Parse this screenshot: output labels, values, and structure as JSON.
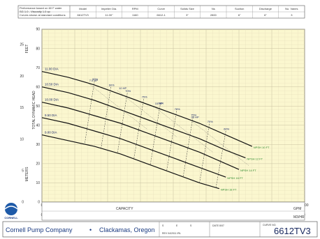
{
  "header": {
    "notes": [
      "Performance based on 60 F water",
      "SG 1.0 - Viscosity 1.0 cp",
      "Curves shown at standard conditions"
    ],
    "columns": [
      {
        "label": "Model",
        "value": "6612TV3"
      },
      {
        "label": "Impeller Dia.",
        "value": "11.00\""
      },
      {
        "label": "RPM",
        "value": "1160"
      },
      {
        "label": "Curve",
        "value": "6612-1"
      },
      {
        "label": "Solids Size",
        "value": "3\""
      },
      {
        "label": "Ns",
        "value": "2800"
      },
      {
        "label": "Suction",
        "value": "6\""
      },
      {
        "label": "Discharge",
        "value": "6\""
      },
      {
        "label": "No. Vanes",
        "value": "3"
      }
    ]
  },
  "chart_data": {
    "type": "line",
    "ylabel": "TOTAL DYNAMIC HEAD",
    "xlabel": "CAPACITY",
    "y_units_left": "METERS",
    "y_units_right": "FEET",
    "x_units_bottom": "GPM",
    "x_units_mid": "M3/HR",
    "x_units_top": "LITERS/SEC",
    "xlim": [
      0,
      4000
    ],
    "ylim": [
      0,
      90
    ],
    "x_ticks": [
      0,
      500,
      1000,
      1500,
      2000,
      2500,
      3000,
      3500,
      4000
    ],
    "y_ticks": [
      0,
      10,
      20,
      30,
      40,
      50,
      60,
      70,
      80,
      90
    ],
    "y_ticks_meters": [
      0,
      5,
      10,
      15,
      20,
      25
    ],
    "x_ticks_m3hr": [
      0,
      100,
      200,
      300,
      400,
      500,
      600,
      700,
      800,
      900
    ],
    "x_ticks_lps": [
      0,
      50,
      100,
      150,
      200,
      250
    ],
    "grid": true,
    "series": [
      {
        "name": "11.00 DIA",
        "x": [
          0,
          400,
          800,
          1200,
          1600,
          2000,
          2400,
          2800,
          3200
        ],
        "y": [
          68,
          65,
          61,
          56,
          51,
          46,
          41,
          35,
          29
        ]
      },
      {
        "name": "10.50 DIA",
        "x": [
          0,
          400,
          800,
          1200,
          1600,
          2000,
          2400,
          2800,
          3100
        ],
        "y": [
          60,
          57,
          53,
          48,
          43,
          38,
          33,
          27,
          23
        ]
      },
      {
        "name": "10.00 DIA",
        "x": [
          0,
          400,
          800,
          1200,
          1600,
          2000,
          2400,
          2800,
          3000
        ],
        "y": [
          52,
          49,
          45,
          41,
          36,
          31,
          26,
          20,
          17
        ]
      },
      {
        "name": "9.50 DIA",
        "x": [
          0,
          400,
          800,
          1200,
          1600,
          2000,
          2400,
          2800
        ],
        "y": [
          44,
          41,
          37,
          33,
          28,
          23,
          18,
          13
        ]
      },
      {
        "name": "9.00 DIA",
        "x": [
          0,
          400,
          800,
          1200,
          1600,
          2000,
          2400,
          2700
        ],
        "y": [
          35,
          32,
          29,
          25,
          20,
          15,
          10,
          7
        ]
      }
    ],
    "efficiency_labels": [
      "50%",
      "60%",
      "70%",
      "75%",
      "78%",
      "78%",
      "75%",
      "70%",
      "60%"
    ],
    "hp_labels": [
      "7.5 HP",
      "10 HP",
      "15 HP",
      "20 HP"
    ],
    "npsh_labels": [
      "NPSH 10 FT",
      "NPSH 12 FT",
      "NPSH 14 FT",
      "NPSH 16 FT",
      "NPSH 18 FT"
    ]
  },
  "footer": {
    "logo_text": "CORNELL",
    "company": "Cornell Pump Company",
    "separator": "•",
    "location": "Clackamas, Oregon",
    "model": "6612TV3",
    "small_fields": [
      "S",
      "E",
      "S",
      "DATE 8/07",
      "REV 04/2011 IRL",
      "CURVE NO."
    ]
  }
}
